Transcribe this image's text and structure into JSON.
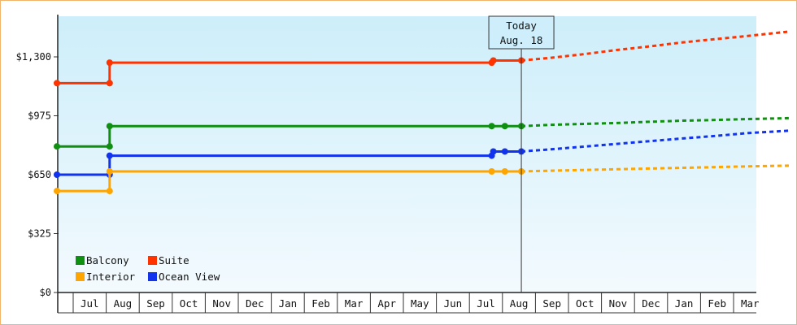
{
  "chart_data": {
    "type": "line",
    "y_ticks": [
      {
        "value": 0,
        "label": "$0"
      },
      {
        "value": 325,
        "label": "$325"
      },
      {
        "value": 650,
        "label": "$650"
      },
      {
        "value": 975,
        "label": "$975"
      },
      {
        "value": 1300,
        "label": "$1,300"
      }
    ],
    "ylim": [
      0,
      1300
    ],
    "months": [
      "Jul",
      "Aug",
      "Sep",
      "Oct",
      "Nov",
      "Dec",
      "Jan",
      "Feb",
      "Mar",
      "Apr",
      "May",
      "Jun",
      "Jul",
      "Aug",
      "Sep",
      "Oct",
      "Nov",
      "Dec",
      "Jan",
      "Feb",
      "Mar"
    ],
    "today": {
      "line1": "Today",
      "line2": "Aug. 18"
    },
    "legend": [
      {
        "name": "Balcony",
        "color": "#109010"
      },
      {
        "name": "Suite",
        "color": "#ff3300"
      },
      {
        "name": "Interior",
        "color": "#ffa500"
      },
      {
        "name": "Ocean View",
        "color": "#1133ee"
      }
    ],
    "series": [
      {
        "name": "Suite",
        "color": "#ff3300",
        "solid": [
          [
            0,
            1155
          ],
          [
            1.6,
            1155
          ],
          [
            1.6,
            1268
          ],
          [
            13.2,
            1268
          ],
          [
            13.25,
            1280
          ],
          [
            14.1,
            1280
          ]
        ],
        "points": [
          [
            0,
            1155
          ],
          [
            1.6,
            1155
          ],
          [
            1.6,
            1268
          ],
          [
            13.2,
            1268
          ],
          [
            13.25,
            1280
          ],
          [
            14.1,
            1280
          ]
        ],
        "forecast": [
          [
            14.1,
            1280
          ],
          [
            15,
            1295
          ],
          [
            16,
            1315
          ],
          [
            17,
            1338
          ],
          [
            18,
            1358
          ],
          [
            19,
            1380
          ],
          [
            20,
            1398
          ],
          [
            21,
            1416
          ],
          [
            22.25,
            1440
          ]
        ]
      },
      {
        "name": "Balcony",
        "color": "#109010",
        "solid": [
          [
            0,
            806
          ],
          [
            1.6,
            806
          ],
          [
            1.6,
            918
          ],
          [
            13.2,
            918
          ],
          [
            13.6,
            918
          ],
          [
            14.1,
            918
          ]
        ],
        "points": [
          [
            0,
            806
          ],
          [
            1.6,
            806
          ],
          [
            1.6,
            918
          ],
          [
            13.2,
            918
          ],
          [
            13.6,
            918
          ],
          [
            14.1,
            918
          ]
        ],
        "forecast": [
          [
            14.1,
            918
          ],
          [
            15,
            925
          ],
          [
            16,
            930
          ],
          [
            17,
            935
          ],
          [
            18,
            942
          ],
          [
            19,
            948
          ],
          [
            20,
            952
          ],
          [
            21,
            957
          ],
          [
            22.25,
            962
          ]
        ]
      },
      {
        "name": "Ocean View",
        "color": "#1133ee",
        "solid": [
          [
            0,
            650
          ],
          [
            1.6,
            650
          ],
          [
            1.6,
            755
          ],
          [
            13.2,
            755
          ],
          [
            13.25,
            778
          ],
          [
            13.6,
            778
          ],
          [
            14.1,
            778
          ]
        ],
        "points": [
          [
            0,
            650
          ],
          [
            1.6,
            650
          ],
          [
            1.6,
            755
          ],
          [
            13.2,
            755
          ],
          [
            13.25,
            778
          ],
          [
            13.6,
            778
          ],
          [
            14.1,
            778
          ]
        ],
        "forecast": [
          [
            14.1,
            778
          ],
          [
            15,
            790
          ],
          [
            16,
            805
          ],
          [
            17,
            820
          ],
          [
            18,
            835
          ],
          [
            19,
            850
          ],
          [
            20,
            864
          ],
          [
            21,
            880
          ],
          [
            22.25,
            893
          ]
        ]
      },
      {
        "name": "Interior",
        "color": "#ffa500",
        "solid": [
          [
            0,
            560
          ],
          [
            1.6,
            560
          ],
          [
            1.6,
            668
          ],
          [
            13.2,
            668
          ],
          [
            13.6,
            668
          ],
          [
            14.1,
            668
          ]
        ],
        "points": [
          [
            0,
            560
          ],
          [
            1.6,
            560
          ],
          [
            1.6,
            668
          ],
          [
            13.2,
            668
          ],
          [
            13.6,
            668
          ],
          [
            14.1,
            668
          ]
        ],
        "forecast": [
          [
            14.1,
            668
          ],
          [
            15,
            672
          ],
          [
            16,
            676
          ],
          [
            17,
            680
          ],
          [
            18,
            684
          ],
          [
            19,
            688
          ],
          [
            20,
            692
          ],
          [
            21,
            696
          ],
          [
            22.25,
            700
          ]
        ]
      }
    ]
  }
}
